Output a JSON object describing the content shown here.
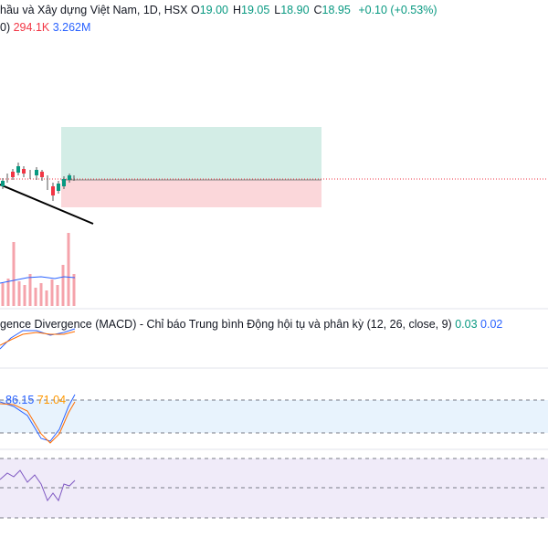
{
  "header": {
    "symbol": "hầu và Xây dựng Việt Nam, 1D, HSX",
    "ohlc": [
      {
        "label": "O",
        "value": "19.00"
      },
      {
        "label": "H",
        "value": "19.05"
      },
      {
        "label": "L",
        "value": "18.90"
      },
      {
        "label": "C",
        "value": "18.95"
      }
    ],
    "change": "+0.10 (+0.53%)"
  },
  "volume": {
    "title": "0)",
    "value": "294.1K",
    "ma": "3.262M"
  },
  "macd": {
    "title": "gence Divergence (MACD) - Chỉ báo Trung bình Động hội tụ và phân kỳ (12, 26, close, 9)",
    "values": [
      "0.03",
      "0.02"
    ]
  },
  "stoch": {
    "values": [
      "86.15",
      "71.04"
    ]
  }
}
